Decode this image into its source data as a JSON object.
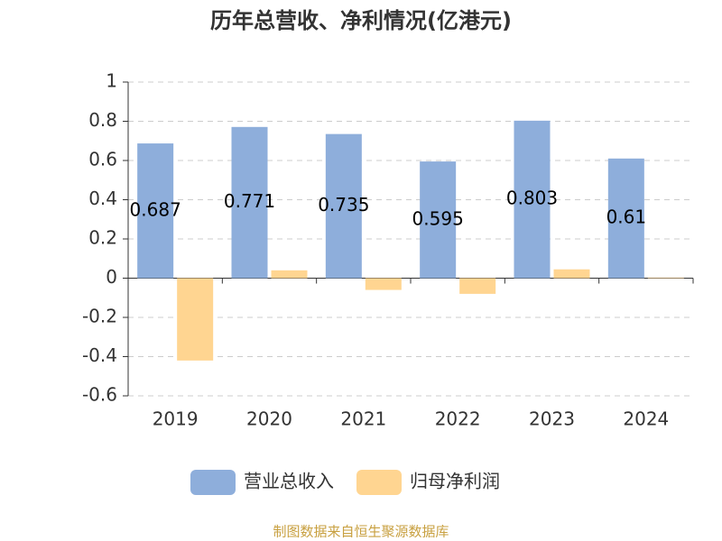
{
  "chart_data": {
    "type": "bar",
    "title": "历年总营收、净利情况(亿港元)",
    "categories": [
      "2019",
      "2020",
      "2021",
      "2022",
      "2023",
      "2024"
    ],
    "series": [
      {
        "name": "营业总收入",
        "color": "#8eaedb",
        "values": [
          0.687,
          0.771,
          0.735,
          0.595,
          0.803,
          0.61
        ],
        "show_labels": true
      },
      {
        "name": "归母净利润",
        "color": "#ffd591",
        "values": [
          -0.42,
          0.04,
          -0.06,
          -0.08,
          0.045,
          0.003
        ],
        "show_labels": false
      }
    ],
    "ylim": [
      -0.6,
      1
    ],
    "yticks": [
      -0.6,
      -0.4,
      -0.2,
      0,
      0.2,
      0.4,
      0.6,
      0.8,
      1
    ],
    "grid": true,
    "legend": "bottom",
    "source": "制图数据来自恒生聚源数据库"
  }
}
